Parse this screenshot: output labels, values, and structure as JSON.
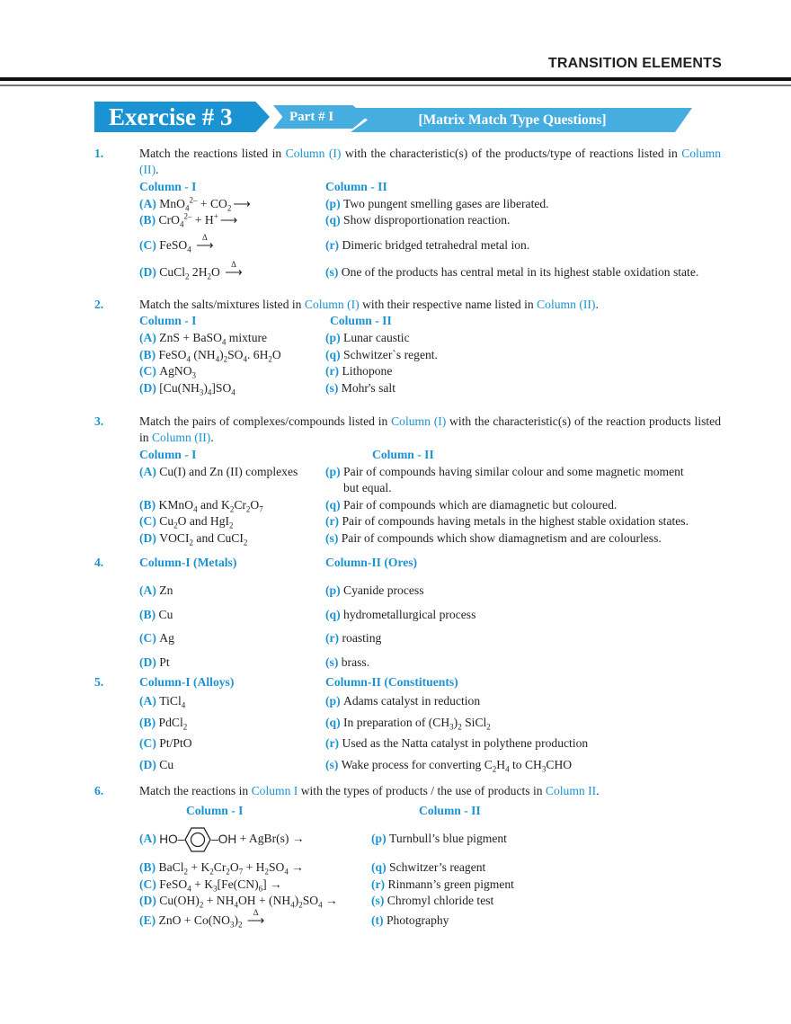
{
  "header": {
    "title": "TRANSITION  ELEMENTS"
  },
  "banner": {
    "exercise": "Exercise # 3",
    "part": "Part # I",
    "type": "[Matrix Match Type Questions]"
  },
  "colors": {
    "accent": "#1b93d3",
    "accent_light": "#45ade0",
    "text": "#231f20"
  },
  "questions": [
    {
      "number": "1.",
      "prompt": [
        "Match the reactions listed in ",
        {
          "blue": "Column (I)"
        },
        " with the characteristic(s) of the products/type of reactions  listed in ",
        {
          "blue": "Column (II)"
        },
        "."
      ],
      "col_i": "Column - I",
      "col_ii": "Column - II",
      "rows": [
        {
          "l": "(A)",
          "left": [
            "MnO",
            {
              "sub": "4"
            },
            {
              "sup": "2–"
            },
            " + CO",
            {
              "sub": "2"
            },
            {
              "arrow": ""
            }
          ],
          "r": "(p)",
          "right": [
            "Two pungent smelling gases are liberated."
          ]
        },
        {
          "l": "(B)",
          "left": [
            "CrO",
            {
              "sub": "4"
            },
            {
              "sup": "2–"
            },
            " + H",
            {
              "sup": "+"
            },
            {
              "arrow": ""
            }
          ],
          "r": "(q)",
          "right": [
            "Show disproportionation reaction."
          ]
        },
        {
          "l": "(C)",
          "left": [
            "FeSO",
            {
              "sub": "4"
            },
            " ",
            {
              "arrow": "Δ"
            }
          ],
          "r": "(r)",
          "right": [
            "Dimeric bridged tetrahedral metal ion."
          ]
        },
        {
          "l": "(D)",
          "left": [
            "CuCl",
            {
              "sub": "2"
            },
            " 2H",
            {
              "sub": "2"
            },
            "O ",
            {
              "arrow": "Δ"
            }
          ],
          "r": "(s)",
          "right": [
            "One of the products has central metal in its highest stable oxidation state."
          ]
        }
      ]
    },
    {
      "number": "2.",
      "prompt": [
        "Match the salts/mixtures listed in ",
        {
          "blue": "Column (I)"
        },
        " with their respective name listed in ",
        {
          "blue": "Column (II)"
        },
        "."
      ],
      "col_i": "Column - I",
      "col_ii": "Column - II",
      "rows": [
        {
          "l": "(A)",
          "left": [
            "ZnS + BaSO",
            {
              "sub": "4"
            },
            " mixture"
          ],
          "r": "(p)",
          "right": [
            "Lunar caustic"
          ]
        },
        {
          "l": "(B)",
          "left": [
            "FeSO",
            {
              "sub": "4"
            },
            " (NH",
            {
              "sub": "4"
            },
            ")",
            {
              "sub": "2"
            },
            "SO",
            {
              "sub": "4"
            },
            ". 6H",
            {
              "sub": "2"
            },
            "O"
          ],
          "r": "(q)",
          "right": [
            "Schwitzer`s regent."
          ]
        },
        {
          "l": "(C)",
          "left": [
            "AgNO",
            {
              "sub": "3"
            }
          ],
          "r": "(r)",
          "right": [
            "Lithopone"
          ]
        },
        {
          "l": "(D)",
          "left": [
            "[Cu(NH",
            {
              "sub": "3"
            },
            ")",
            {
              "sub": "4"
            },
            "]SO",
            {
              "sub": "4"
            }
          ],
          "r": "(s)",
          "right": [
            "Mohr's salt"
          ]
        }
      ]
    },
    {
      "number": "3.",
      "prompt": [
        "Match the pairs of complexes/compounds listed in ",
        {
          "blue": "Column (I)"
        },
        " with the characteristic(s) of the reaction products listed in ",
        {
          "blue": "Column (II)"
        },
        "."
      ],
      "col_i": "Column - I",
      "col_ii": "Column - II",
      "rows": [
        {
          "l": "(A)",
          "left": [
            "Cu(I) and Zn (II) complexes"
          ],
          "r": "(p)",
          "right": [
            "Pair of compounds having similar colour and some magnetic moment"
          ],
          "right2": "but equal."
        },
        {
          "l": "(B)",
          "left": [
            "KMnO",
            {
              "sub": "4"
            },
            " and K",
            {
              "sub": "2"
            },
            "Cr",
            {
              "sub": "2"
            },
            "O",
            {
              "sub": "7"
            }
          ],
          "r": "(q)",
          "right": [
            "Pair of compounds which are diamagnetic but coloured."
          ]
        },
        {
          "l": "(C)",
          "left": [
            "Cu",
            {
              "sub": "2"
            },
            "O and HgI",
            {
              "sub": "2"
            }
          ],
          "r": "(r)",
          "right": [
            "Pair of compounds having metals in the highest stable oxidation states."
          ]
        },
        {
          "l": "(D)",
          "left": [
            "VOCI",
            {
              "sub": "2"
            },
            " and CuCI",
            {
              "sub": "2"
            }
          ],
          "r": "(s)",
          "right": [
            "Pair of compounds which show diamagnetism and are colourless."
          ]
        }
      ]
    },
    {
      "number": "4.",
      "col_i": "Column-I (Metals)",
      "col_ii": "Column-II (Ores)",
      "rows": [
        {
          "l": "(A)",
          "left": [
            "Zn"
          ],
          "r": "(p)",
          "right": [
            " Cyanide process"
          ]
        },
        {
          "l": "(B)",
          "left": [
            "Cu"
          ],
          "r": "(q)",
          "right": [
            "hydrometallurgical process"
          ]
        },
        {
          "l": "(C)",
          "left": [
            "Ag"
          ],
          "r": "(r)",
          "right": [
            " roasting"
          ]
        },
        {
          "l": "(D)",
          "left": [
            "Pt"
          ],
          "r": "(s)",
          "right": [
            "brass."
          ]
        }
      ]
    },
    {
      "number": "5.",
      "col_i": "Column-I (Alloys)",
      "col_ii": "Column-II (Constituents)",
      "rows": [
        {
          "l": "(A)",
          "left": [
            "TiCl",
            {
              "sub": "4"
            }
          ],
          "r": "(p)",
          "right": [
            " Adams catalyst in reduction"
          ]
        },
        {
          "l": "(B)",
          "left": [
            "PdCl",
            {
              "sub": "2"
            }
          ],
          "r": "(q)",
          "right": [
            "In preparation of (CH",
            {
              "sub": "3"
            },
            ")",
            {
              "sub": "2"
            },
            " SiCl",
            {
              "sub": "2"
            }
          ]
        },
        {
          "l": "(C)",
          "left": [
            "Pt/PtO"
          ],
          "r": "(r)",
          "right": [
            " Used as the Natta catalyst in polythene production"
          ]
        },
        {
          "l": "(D)",
          "left": [
            "Cu"
          ],
          "r": "(s)",
          "right": [
            "Wake process for converting C",
            {
              "sub": "2"
            },
            "H",
            {
              "sub": "4"
            },
            " to CH",
            {
              "sub": "3"
            },
            "CHO"
          ]
        }
      ]
    },
    {
      "number": "6.",
      "prompt": [
        "Match the reactions in ",
        {
          "blue": "Column I"
        },
        " with the types of products / the use of products in ",
        {
          "blue": "Column II"
        },
        "."
      ],
      "col_i": "Column - I",
      "col_ii": "Column - II",
      "rows": [
        {
          "l": "(A)",
          "left": [
            {
              "ring": [
                "HO",
                "OH"
              ]
            },
            " + AgBr(s) →"
          ],
          "r": "(p)",
          "right": [
            "Turnbull’s blue pigment"
          ]
        },
        {
          "l": "(B)",
          "left": [
            "BaCl",
            {
              "sub": "2"
            },
            " + K",
            {
              "sub": "2"
            },
            "Cr",
            {
              "sub": "2"
            },
            "O",
            {
              "sub": "7"
            },
            " + H",
            {
              "sub": "2"
            },
            "SO",
            {
              "sub": "4"
            },
            " →"
          ],
          "r": "(q)",
          "right": [
            "Schwitzer’s reagent"
          ]
        },
        {
          "l": "(C)",
          "left": [
            "FeSO",
            {
              "sub": "4"
            },
            " + K",
            {
              "sub": "3"
            },
            "[Fe(CN)",
            {
              "sub": "6"
            },
            "] →"
          ],
          "r": "(r)",
          "right": [
            "Rinmann’s green pigment"
          ]
        },
        {
          "l": "(D)",
          "left": [
            "Cu(OH)",
            {
              "sub": "2"
            },
            " + NH",
            {
              "sub": "4"
            },
            "OH + (NH",
            {
              "sub": "4"
            },
            ")",
            {
              "sub": "2"
            },
            "SO",
            {
              "sub": "4"
            },
            " →"
          ],
          "r": "(s)",
          "right": [
            "Chromyl chloride test"
          ]
        },
        {
          "l": "(E)",
          "left": [
            "ZnO + Co(NO",
            {
              "sub": "3"
            },
            ")",
            {
              "sub": "2"
            },
            " ",
            {
              "arrow": "Δ"
            }
          ],
          "r": "(t)",
          "right": [
            "Photography"
          ]
        }
      ]
    }
  ]
}
